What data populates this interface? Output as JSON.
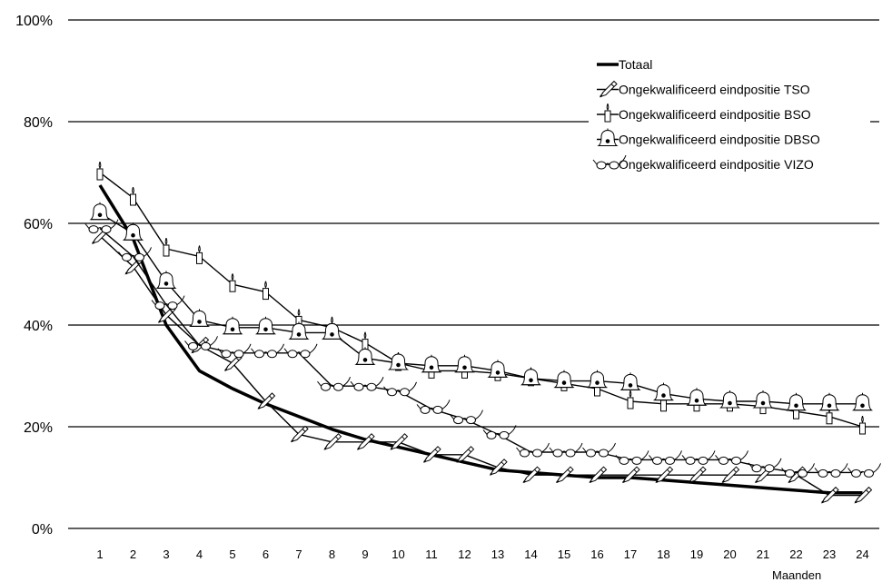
{
  "chart_data": {
    "type": "line",
    "x": [
      1,
      2,
      3,
      4,
      5,
      6,
      7,
      8,
      9,
      10,
      11,
      12,
      13,
      14,
      15,
      16,
      17,
      18,
      19,
      20,
      21,
      22,
      23,
      24
    ],
    "xlabel": "Maanden",
    "ylabel": "",
    "ylim": [
      0,
      100
    ],
    "y_ticks": [
      "0%",
      "20%",
      "40%",
      "60%",
      "80%",
      "100%"
    ],
    "grid": true,
    "legend_position": "top-right",
    "series": [
      {
        "name": "Totaal",
        "marker": "none",
        "values": [
          67.5,
          57,
          40,
          31,
          27.5,
          24.5,
          22,
          19.5,
          17.5,
          16,
          14.5,
          13,
          11.5,
          11,
          10.5,
          10,
          10,
          9.5,
          9,
          8.5,
          8,
          7.5,
          7,
          7
        ]
      },
      {
        "name": "Ongekwalificeerd eindpositie TSO",
        "marker": "pencil-icon",
        "values": [
          57.5,
          51.5,
          42,
          36,
          32.5,
          25,
          18.5,
          17,
          17,
          17,
          14.5,
          14.5,
          12,
          10.5,
          10.5,
          10.5,
          10.5,
          10.5,
          10.5,
          10.5,
          10.5,
          10.5,
          6.5,
          6.5
        ]
      },
      {
        "name": "Ongekwalificeerd eindpositie BSO",
        "marker": "candle-icon",
        "values": [
          70,
          65,
          55,
          53.5,
          48,
          46.5,
          41,
          39.5,
          36.5,
          32.5,
          31,
          31,
          30.5,
          29.5,
          28.5,
          27.5,
          25,
          24.5,
          24.5,
          24.5,
          24,
          23,
          22,
          20
        ]
      },
      {
        "name": "Ongekwalificeerd eindpositie DBSO",
        "marker": "bell-icon",
        "values": [
          62,
          58,
          48.5,
          41,
          39.5,
          39.5,
          38.5,
          38.5,
          33.5,
          32.5,
          32,
          32,
          31,
          29.5,
          29,
          29,
          28.5,
          26.5,
          25.5,
          25,
          25,
          24.5,
          24.5,
          24.5
        ]
      },
      {
        "name": "Ongekwalificeerd eindpositie VIZO",
        "marker": "glasses-icon",
        "values": [
          59,
          53.5,
          44,
          36,
          34.5,
          34.5,
          34.5,
          28,
          28,
          27,
          23.5,
          21.5,
          18.5,
          15,
          15,
          15,
          13.5,
          13.5,
          13.5,
          13.5,
          12,
          11,
          11,
          11
        ]
      }
    ]
  }
}
